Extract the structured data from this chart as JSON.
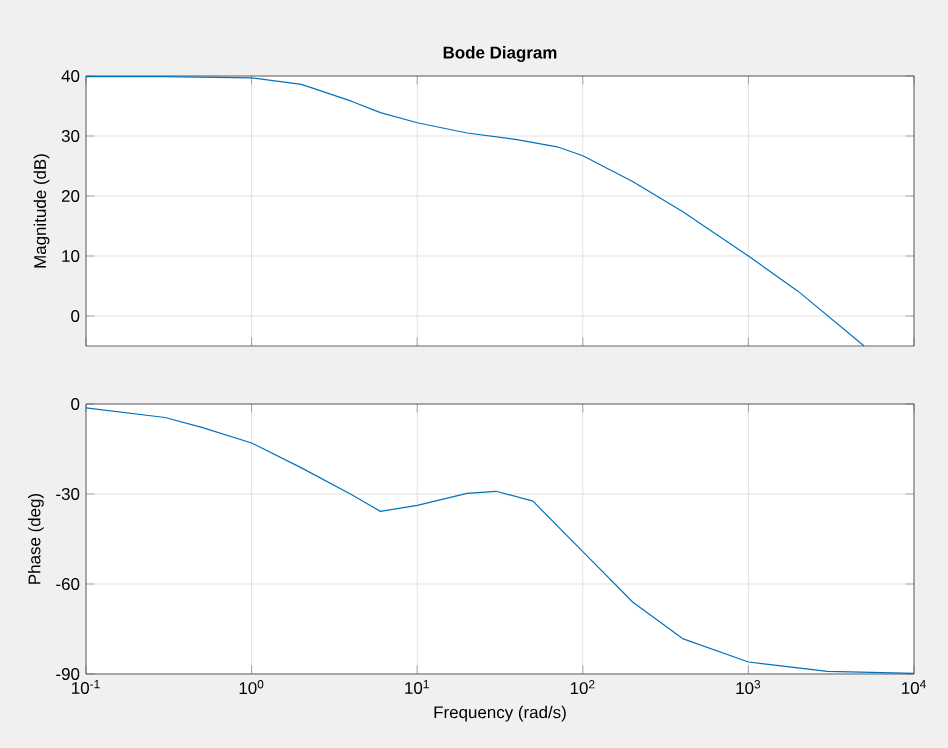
{
  "chart_data": [
    {
      "type": "line",
      "title": "Bode Diagram",
      "ylabel": "Magnitude (dB)",
      "log": "x",
      "grid": true,
      "tick_labels": "y",
      "xlim": [
        0.1,
        10000
      ],
      "xticks": [
        {
          "value": 0.1,
          "label": null
        },
        {
          "value": 1,
          "label": null
        },
        {
          "value": 10,
          "label": null
        },
        {
          "value": 100,
          "label": null
        },
        {
          "value": 1000,
          "label": null
        },
        {
          "value": 10000,
          "label": null
        }
      ],
      "ylim": [
        -5,
        40
      ],
      "yticks": [
        0,
        10,
        20,
        30,
        40
      ],
      "series": [
        {
          "color": "#0072bd",
          "x": [
            0.1,
            0.3,
            1,
            2,
            4,
            6,
            10,
            20,
            40,
            70,
            100,
            200,
            400,
            1000,
            2000,
            5000
          ],
          "values": [
            39.9,
            39.9,
            39.7,
            38.6,
            35.8,
            33.9,
            32.2,
            30.5,
            29.4,
            28.2,
            26.7,
            22.4,
            17.4,
            10,
            4.1,
            -5
          ]
        }
      ]
    },
    {
      "type": "line",
      "xlabel": "Frequency (rad/s)",
      "ylabel": "Phase (deg)",
      "log": "x",
      "grid": true,
      "xlim": [
        0.1,
        10000
      ],
      "xticks": [
        {
          "value": 0.1,
          "label": "10$^{-1}$"
        },
        {
          "value": 1,
          "label": "10$^{0}$"
        },
        {
          "value": 10,
          "label": "10$^{1}$"
        },
        {
          "value": 100,
          "label": "10$^{2}$"
        },
        {
          "value": 1000,
          "label": "10$^{3}$"
        },
        {
          "value": 10000,
          "label": "10$^{4}$"
        }
      ],
      "ylim": [
        -90,
        0
      ],
      "yticks": [
        0,
        -30,
        -60,
        -90
      ],
      "series": [
        {
          "color": "#0072bd",
          "x": [
            0.1,
            0.3,
            0.5,
            1,
            2,
            4,
            6,
            10,
            20,
            30,
            50,
            100,
            200,
            400,
            1000,
            3000,
            10000
          ],
          "values": [
            -1.3,
            -4.5,
            -7.8,
            -13,
            -21.3,
            -30.2,
            -35.8,
            -33.8,
            -29.8,
            -29.1,
            -32.4,
            -49.2,
            -66,
            -78.2,
            -86,
            -89.1,
            -89.8
          ]
        }
      ]
    }
  ]
}
